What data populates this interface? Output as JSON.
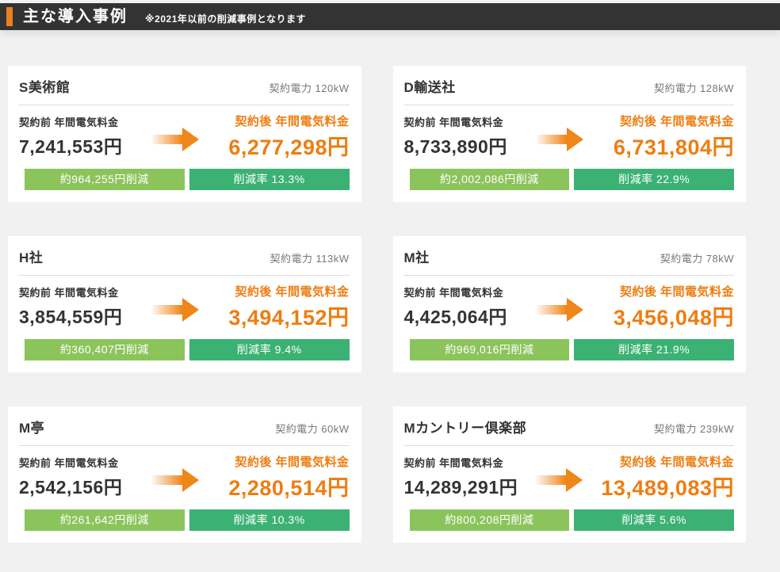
{
  "header": {
    "title": "主な導入事例",
    "note": "※2021年以前の削減事例となります"
  },
  "labels": {
    "power": "契約電力",
    "before": "契約前 年間電気料金",
    "after": "契約後 年間電気料金"
  },
  "colors": {
    "header_bg": "#333333",
    "accent_orange": "#e8821e",
    "after_orange": "#ee7d11",
    "saving_green_light": "#8cc45c",
    "rate_green": "#3bb273",
    "page_bg": "#f1f1f1",
    "card_bg": "#ffffff"
  },
  "cases": [
    {
      "name": "S美術館",
      "power": "120kW",
      "before": "7,241,553円",
      "after": "6,277,298円",
      "saving": "約964,255円削減",
      "rate": "削減率 13.3%"
    },
    {
      "name": "D輸送社",
      "power": "128kW",
      "before": "8,733,890円",
      "after": "6,731,804円",
      "saving": "約2,002,086円削減",
      "rate": "削減率 22.9%"
    },
    {
      "name": "H社",
      "power": "113kW",
      "before": "3,854,559円",
      "after": "3,494,152円",
      "saving": "約360,407円削減",
      "rate": "削減率 9.4%"
    },
    {
      "name": "M社",
      "power": "78kW",
      "before": "4,425,064円",
      "after": "3,456,048円",
      "saving": "約969,016円削減",
      "rate": "削減率 21.9%"
    },
    {
      "name": "M亭",
      "power": "60kW",
      "before": "2,542,156円",
      "after": "2,280,514円",
      "saving": "約261,642円削減",
      "rate": "削減率 10.3%"
    },
    {
      "name": "Mカントリー倶楽部",
      "power": "239kW",
      "before": "14,289,291円",
      "after": "13,489,083円",
      "saving": "約800,208円削減",
      "rate": "削減率 5.6%"
    }
  ]
}
